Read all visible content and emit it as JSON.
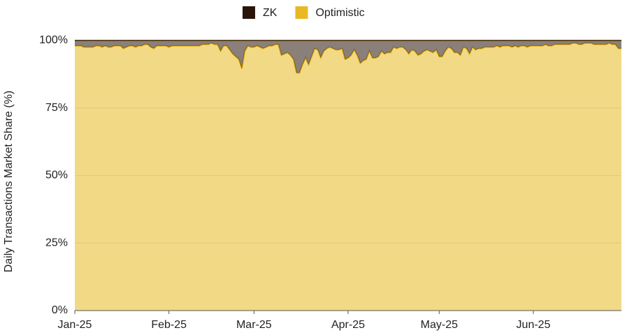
{
  "chart_data": {
    "type": "stacked-area",
    "y_label": "Daily Transactions Market Share (%)",
    "categories": [
      "Jan-25",
      null,
      null,
      null,
      null,
      null,
      null,
      null,
      null,
      null,
      null,
      null,
      null,
      null,
      null,
      null,
      null,
      null,
      null,
      null,
      null,
      null,
      null,
      null,
      null,
      null,
      null,
      null,
      null,
      null,
      null,
      "Feb-25",
      null,
      null,
      null,
      null,
      null,
      null,
      null,
      null,
      null,
      null,
      null,
      null,
      null,
      null,
      null,
      null,
      null,
      null,
      null,
      null,
      null,
      null,
      null,
      null,
      null,
      null,
      null,
      "Mar-25",
      null,
      null,
      null,
      null,
      null,
      null,
      null,
      null,
      null,
      null,
      null,
      null,
      null,
      null,
      null,
      null,
      null,
      null,
      null,
      null,
      null,
      null,
      null,
      null,
      null,
      null,
      null,
      null,
      null,
      null,
      "Apr-25",
      null,
      null,
      null,
      null,
      null,
      null,
      null,
      null,
      null,
      null,
      null,
      null,
      null,
      null,
      null,
      null,
      null,
      null,
      null,
      null,
      null,
      null,
      null,
      null,
      null,
      null,
      null,
      null,
      null,
      "May-25",
      null,
      null,
      null,
      null,
      null,
      null,
      null,
      null,
      null,
      null,
      null,
      null,
      null,
      null,
      null,
      null,
      null,
      null,
      null,
      null,
      null,
      null,
      null,
      null,
      null,
      null,
      null,
      null,
      null,
      null,
      "Jun-25",
      null,
      null,
      null,
      null,
      null,
      null,
      null,
      null,
      null,
      null,
      null,
      null,
      null,
      null,
      null,
      null,
      null,
      null,
      null,
      null,
      null,
      null,
      null,
      null,
      null,
      null,
      null,
      null,
      null
    ],
    "series": [
      {
        "name": "ZK",
        "color": "#2a150b",
        "values": [
          2,
          2,
          2,
          2.5,
          2.5,
          2.5,
          2.5,
          2,
          2,
          2.5,
          2,
          2.5,
          2.5,
          2,
          2,
          2,
          3,
          2.5,
          2,
          2,
          2.5,
          2,
          2,
          1.5,
          1.5,
          2.5,
          3,
          2,
          2,
          2,
          2,
          2.5,
          2,
          2,
          2,
          2,
          2,
          2,
          2,
          2,
          2,
          2,
          1.5,
          1.5,
          1.5,
          1,
          1.5,
          1.5,
          4,
          2,
          2,
          3.5,
          5,
          6,
          7,
          10.5,
          4,
          2,
          2.5,
          2.5,
          2,
          2.5,
          3,
          2.5,
          2,
          2,
          1.5,
          1.5,
          5.5,
          5,
          4.5,
          5.5,
          7,
          12,
          12,
          9,
          6.5,
          9,
          6,
          3,
          3.5,
          6.5,
          4,
          3,
          2.5,
          3,
          3.5,
          3.5,
          3,
          7,
          6.5,
          5.5,
          3.5,
          5.5,
          8.5,
          7.5,
          7,
          4,
          6.5,
          6.5,
          6,
          4,
          5,
          4.5,
          4.5,
          2.5,
          3,
          2.5,
          2.5,
          3.5,
          5,
          3.5,
          4,
          5.5,
          5,
          4,
          3.5,
          4,
          4.5,
          3.5,
          6,
          6,
          4,
          2.5,
          3,
          4.5,
          4.5,
          5.5,
          2.5,
          3,
          5,
          2.5,
          3.5,
          3,
          3,
          2.5,
          2.5,
          2.5,
          2.5,
          2,
          2.5,
          2,
          2,
          2,
          2.5,
          2,
          2.5,
          2,
          2,
          2.5,
          2,
          2,
          2,
          2,
          2,
          1.5,
          2,
          2,
          1.5,
          1.5,
          1.5,
          1.5,
          1.5,
          1.5,
          1,
          1,
          1.5,
          1.5,
          1,
          1,
          1,
          1.5,
          1.5,
          1.5,
          1.5,
          1.5,
          1,
          1.5,
          1.5,
          3,
          3
        ]
      },
      {
        "name": "Optimistic",
        "color": "#e8b923",
        "values": [
          98,
          98,
          98,
          97.5,
          97.5,
          97.5,
          97.5,
          98,
          98,
          97.5,
          98,
          97.5,
          97.5,
          98,
          98,
          98,
          97,
          97.5,
          98,
          98,
          97.5,
          98,
          98,
          98.5,
          98.5,
          97.5,
          97,
          98,
          98,
          98,
          98,
          97.5,
          98,
          98,
          98,
          98,
          98,
          98,
          98,
          98,
          98,
          98,
          98.5,
          98.5,
          98.5,
          99,
          98.5,
          98.5,
          96,
          98,
          98,
          96.5,
          95,
          94,
          93,
          89.5,
          96,
          98,
          97.5,
          97.5,
          98,
          97.5,
          97,
          97.5,
          98,
          98,
          98.5,
          98.5,
          94.5,
          95,
          95.5,
          94.5,
          93,
          88,
          88,
          91,
          93.5,
          91,
          94,
          97,
          96.5,
          93.5,
          96,
          97,
          97.5,
          97,
          96.5,
          96.5,
          97,
          93,
          93.5,
          94.5,
          96.5,
          94.5,
          91.5,
          92.5,
          93,
          96,
          93.5,
          93.5,
          94,
          96,
          95,
          95.5,
          95.5,
          97.5,
          97,
          97.5,
          97.5,
          96.5,
          95,
          96.5,
          96,
          94.5,
          95,
          96,
          96.5,
          96,
          95.5,
          96.5,
          94,
          94,
          96,
          97.5,
          97,
          95.5,
          95.5,
          94.5,
          97.5,
          97,
          95,
          97.5,
          96.5,
          97,
          97,
          97.5,
          97.5,
          97.5,
          97.5,
          98,
          97.5,
          98,
          98,
          98,
          97.5,
          98,
          97.5,
          98,
          98,
          97.5,
          98,
          98,
          98,
          98,
          98,
          98.5,
          98,
          98,
          98.5,
          98.5,
          98.5,
          98.5,
          98.5,
          98.5,
          99,
          99,
          98.5,
          98.5,
          99,
          99,
          99,
          98.5,
          98.5,
          98.5,
          98.5,
          98.5,
          99,
          98.5,
          98.5,
          97,
          97
        ]
      }
    ],
    "ylim": [
      0,
      100
    ],
    "yticks": [
      {
        "value": 0,
        "label": "0%"
      },
      {
        "value": 25,
        "label": "25%"
      },
      {
        "value": 50,
        "label": "50%"
      },
      {
        "value": 75,
        "label": "75%"
      },
      {
        "value": 100,
        "label": "100%"
      }
    ],
    "grid": true,
    "legend": "top"
  }
}
